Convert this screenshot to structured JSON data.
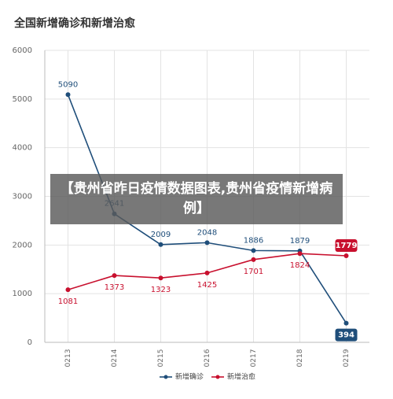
{
  "chart_data": {
    "type": "line",
    "title": "全国新增确诊和新增治愈",
    "categories": [
      "0213",
      "0214",
      "0215",
      "0216",
      "0217",
      "0218",
      "0219"
    ],
    "series": [
      {
        "name": "新增确诊",
        "color": "#1f4e7a",
        "values": [
          5090,
          2641,
          2009,
          2048,
          1886,
          1879,
          394
        ]
      },
      {
        "name": "新增治愈",
        "color": "#c8102e",
        "values": [
          1081,
          1373,
          1323,
          1425,
          1701,
          1824,
          1779
        ]
      }
    ],
    "ylim": [
      0,
      6000
    ],
    "yticks": [
      0,
      1000,
      2000,
      3000,
      4000,
      5000,
      6000
    ],
    "grid": true,
    "legend": "bottom"
  },
  "overlay_text": "【贵州省昨日疫情数据图表,贵州省疫情新增病例】"
}
